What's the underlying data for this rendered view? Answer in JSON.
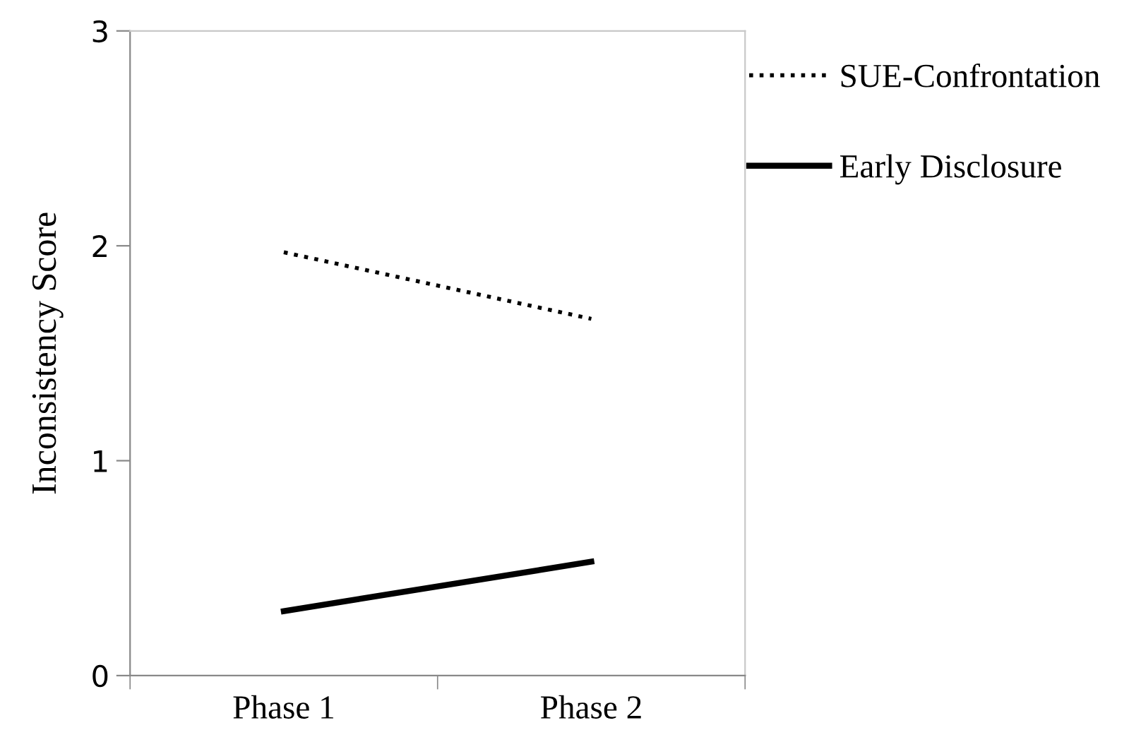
{
  "chart_data": {
    "type": "line",
    "ylabel": "Inconsistency Score",
    "categories": [
      "Phase 1",
      "Phase 2"
    ],
    "series": [
      {
        "name": "SUE-Confrontation",
        "color": "#000000",
        "line_style": "dotted",
        "values": [
          1.97,
          1.66
        ]
      },
      {
        "name": "Early Disclosure",
        "color": "#000000",
        "line_style": "solid",
        "values": [
          0.3,
          0.53
        ]
      }
    ],
    "ylim": [
      0,
      3
    ],
    "yticks": [
      0,
      1,
      2,
      3
    ],
    "grid": false,
    "legend": "top right",
    "marker": "none"
  }
}
